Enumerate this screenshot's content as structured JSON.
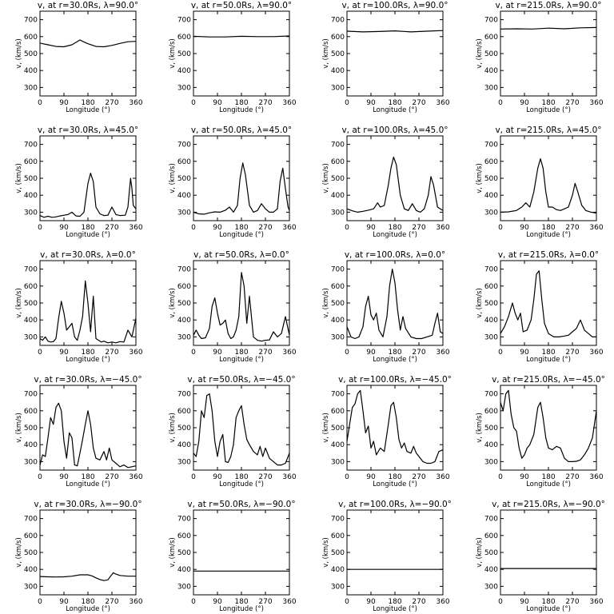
{
  "chart_data": [
    {
      "type": "line",
      "title": "v, at r=30.0Rs, λ=90.0°",
      "xlabel": "Longitude (°)",
      "ylabel": "v, (km/s)",
      "xlim": [
        0,
        360
      ],
      "ylim": [
        250,
        750
      ],
      "x": [
        0,
        30,
        60,
        90,
        120,
        150,
        160,
        180,
        210,
        240,
        270,
        300,
        330,
        360
      ],
      "values": [
        562,
        552,
        542,
        540,
        552,
        580,
        572,
        558,
        542,
        540,
        548,
        560,
        570,
        572
      ]
    },
    {
      "type": "line",
      "title": "v, at r=50.0Rs, λ=90.0°",
      "xlabel": "Longitude (°)",
      "ylabel": "v, (km/s)",
      "xlim": [
        0,
        360
      ],
      "ylim": [
        250,
        750
      ],
      "x": [
        0,
        60,
        120,
        180,
        240,
        300,
        360
      ],
      "values": [
        602,
        598,
        598,
        602,
        600,
        600,
        604
      ]
    },
    {
      "type": "line",
      "title": "v, at r=100.0Rs, λ=90.0°",
      "xlabel": "Longitude (°)",
      "ylabel": "v, (km/s)",
      "xlim": [
        0,
        360
      ],
      "ylim": [
        250,
        750
      ],
      "x": [
        0,
        60,
        120,
        180,
        240,
        300,
        360
      ],
      "values": [
        632,
        628,
        630,
        634,
        628,
        632,
        636
      ]
    },
    {
      "type": "line",
      "title": "v, at r=215.0Rs, λ=90.0°",
      "xlabel": "Longitude (°)",
      "ylabel": "v, (km/s)",
      "xlim": [
        0,
        360
      ],
      "ylim": [
        250,
        750
      ],
      "x": [
        0,
        60,
        120,
        180,
        240,
        300,
        360
      ],
      "values": [
        645,
        646,
        645,
        650,
        646,
        652,
        654
      ]
    },
    {
      "type": "line",
      "title": "v, at r=30.0Rs, λ=45.0°",
      "xlabel": "Longitude (°)",
      "ylabel": "v, (km/s)",
      "xlim": [
        0,
        360
      ],
      "ylim": [
        250,
        750
      ],
      "x": [
        0,
        15,
        30,
        45,
        60,
        75,
        90,
        105,
        120,
        135,
        150,
        165,
        180,
        190,
        200,
        210,
        225,
        240,
        255,
        270,
        285,
        300,
        320,
        330,
        340,
        345,
        350,
        360
      ],
      "values": [
        280,
        270,
        276,
        270,
        272,
        278,
        282,
        286,
        300,
        278,
        276,
        300,
        470,
        530,
        480,
        330,
        290,
        280,
        282,
        330,
        286,
        280,
        282,
        330,
        500,
        440,
        340,
        320
      ]
    },
    {
      "type": "line",
      "title": "v, at r=50.0Rs, λ=45.0°",
      "xlabel": "Longitude (°)",
      "ylabel": "v, (km/s)",
      "xlim": [
        0,
        360
      ],
      "ylim": [
        250,
        750
      ],
      "x": [
        0,
        20,
        40,
        60,
        80,
        100,
        120,
        135,
        150,
        165,
        175,
        185,
        195,
        210,
        225,
        240,
        255,
        270,
        285,
        300,
        315,
        325,
        335,
        345,
        355,
        360
      ],
      "values": [
        300,
        290,
        288,
        296,
        302,
        300,
        312,
        330,
        300,
        340,
        500,
        590,
        520,
        340,
        300,
        310,
        350,
        320,
        300,
        300,
        320,
        480,
        560,
        440,
        330,
        310
      ]
    },
    {
      "type": "line",
      "title": "v, at r=100.0Rs, λ=45.0°",
      "xlabel": "Longitude (°)",
      "ylabel": "v, (km/s)",
      "xlim": [
        0,
        360
      ],
      "ylim": [
        250,
        750
      ],
      "x": [
        0,
        20,
        40,
        60,
        80,
        100,
        115,
        125,
        140,
        155,
        165,
        175,
        185,
        200,
        215,
        230,
        245,
        260,
        275,
        290,
        305,
        315,
        325,
        340,
        350,
        360
      ],
      "values": [
        320,
        308,
        300,
        305,
        312,
        320,
        355,
        330,
        340,
        460,
        560,
        625,
        580,
        400,
        320,
        310,
        350,
        310,
        300,
        320,
        400,
        510,
        460,
        330,
        320,
        310
      ]
    },
    {
      "type": "line",
      "title": "v, at r=215.0Rs, λ=45.0°",
      "xlabel": "Longitude (°)",
      "ylabel": "v, (km/s)",
      "xlim": [
        0,
        360
      ],
      "ylim": [
        250,
        750
      ],
      "x": [
        0,
        30,
        60,
        80,
        95,
        110,
        125,
        140,
        150,
        160,
        170,
        180,
        195,
        210,
        225,
        240,
        255,
        270,
        280,
        290,
        305,
        320,
        340,
        360
      ],
      "values": [
        300,
        302,
        310,
        330,
        355,
        330,
        420,
        560,
        615,
        560,
        420,
        330,
        330,
        315,
        310,
        320,
        330,
        400,
        470,
        420,
        340,
        310,
        300,
        295
      ]
    },
    {
      "type": "line",
      "title": "v, at r=30.0Rs, λ=0.0°",
      "xlabel": "Longitude (°)",
      "ylabel": "v, (km/s)",
      "xlim": [
        0,
        360
      ],
      "ylim": [
        250,
        750
      ],
      "x": [
        0,
        10,
        20,
        30,
        40,
        50,
        60,
        70,
        80,
        90,
        100,
        110,
        120,
        130,
        140,
        150,
        160,
        170,
        180,
        190,
        200,
        210,
        220,
        230,
        240,
        255,
        270,
        285,
        300,
        315,
        330,
        345,
        360
      ],
      "values": [
        290,
        280,
        300,
        275,
        270,
        272,
        290,
        410,
        510,
        440,
        340,
        360,
        380,
        300,
        280,
        340,
        420,
        630,
        500,
        330,
        540,
        290,
        280,
        270,
        275,
        265,
        270,
        265,
        272,
        270,
        340,
        300,
        410
      ]
    },
    {
      "type": "line",
      "title": "v, at r=50.0Rs, λ=0.0°",
      "xlabel": "Longitude (°)",
      "ylabel": "v, (km/s)",
      "xlim": [
        0,
        360
      ],
      "ylim": [
        250,
        750
      ],
      "x": [
        0,
        10,
        20,
        30,
        45,
        60,
        70,
        80,
        90,
        100,
        110,
        120,
        130,
        140,
        150,
        160,
        170,
        180,
        190,
        200,
        210,
        225,
        240,
        255,
        270,
        285,
        300,
        315,
        330,
        345,
        360
      ],
      "values": [
        310,
        340,
        310,
        290,
        295,
        350,
        480,
        530,
        440,
        370,
        380,
        400,
        320,
        290,
        300,
        340,
        420,
        680,
        600,
        380,
        540,
        300,
        280,
        275,
        280,
        282,
        330,
        300,
        320,
        420,
        310
      ]
    },
    {
      "type": "line",
      "title": "v, at r=100.0Rs, λ=0.0°",
      "xlabel": "Longitude (°)",
      "ylabel": "v, (km/s)",
      "xlim": [
        0,
        360
      ],
      "ylim": [
        250,
        750
      ],
      "x": [
        0,
        15,
        30,
        45,
        60,
        70,
        80,
        90,
        100,
        110,
        120,
        135,
        150,
        160,
        170,
        180,
        190,
        200,
        210,
        220,
        240,
        260,
        280,
        300,
        320,
        330,
        340,
        350,
        360
      ],
      "values": [
        360,
        300,
        290,
        300,
        360,
        480,
        540,
        430,
        400,
        440,
        340,
        300,
        420,
        600,
        700,
        620,
        460,
        340,
        420,
        350,
        300,
        290,
        290,
        300,
        310,
        380,
        440,
        330,
        320
      ]
    },
    {
      "type": "line",
      "title": "v, at r=215.0Rs, λ=0.0°",
      "xlabel": "Longitude (°)",
      "ylabel": "v, (km/s)",
      "xlim": [
        0,
        360
      ],
      "ylim": [
        250,
        750
      ],
      "x": [
        0,
        15,
        30,
        45,
        55,
        65,
        75,
        85,
        100,
        115,
        125,
        135,
        145,
        155,
        165,
        180,
        200,
        220,
        240,
        255,
        270,
        285,
        300,
        315,
        330,
        345,
        360
      ],
      "values": [
        320,
        360,
        420,
        500,
        440,
        400,
        440,
        330,
        340,
        400,
        520,
        670,
        690,
        520,
        380,
        320,
        300,
        300,
        305,
        310,
        330,
        350,
        400,
        340,
        320,
        300,
        300
      ]
    },
    {
      "type": "line",
      "title": "v, at r=30.0Rs, λ=−45.0°",
      "xlabel": "Longitude (°)",
      "ylabel": "v, (km/s)",
      "xlim": [
        0,
        360
      ],
      "ylim": [
        250,
        750
      ],
      "x": [
        0,
        10,
        20,
        30,
        40,
        50,
        60,
        70,
        80,
        90,
        100,
        110,
        120,
        130,
        140,
        150,
        160,
        170,
        180,
        190,
        200,
        210,
        225,
        240,
        250,
        260,
        270,
        285,
        300,
        315,
        330,
        345,
        360
      ],
      "values": [
        280,
        340,
        330,
        440,
        560,
        520,
        620,
        645,
        600,
        420,
        320,
        470,
        440,
        280,
        275,
        350,
        430,
        520,
        600,
        520,
        380,
        320,
        310,
        360,
        310,
        380,
        310,
        290,
        270,
        280,
        265,
        270,
        275
      ]
    },
    {
      "type": "line",
      "title": "v, at r=50.0Rs, λ=−45.0°",
      "xlabel": "Longitude (°)",
      "ylabel": "v, (km/s)",
      "xlim": [
        0,
        360
      ],
      "ylim": [
        250,
        750
      ],
      "x": [
        0,
        10,
        20,
        30,
        40,
        50,
        60,
        70,
        80,
        90,
        100,
        110,
        120,
        130,
        140,
        150,
        160,
        170,
        180,
        190,
        200,
        210,
        225,
        240,
        250,
        260,
        270,
        285,
        300,
        315,
        330,
        345,
        360
      ],
      "values": [
        350,
        330,
        420,
        600,
        560,
        690,
        700,
        600,
        420,
        330,
        420,
        460,
        300,
        295,
        330,
        400,
        560,
        600,
        630,
        520,
        430,
        400,
        360,
        340,
        390,
        330,
        380,
        320,
        300,
        280,
        280,
        290,
        350
      ]
    },
    {
      "type": "line",
      "title": "v, at r=100.0Rs, λ=−45.0°",
      "xlabel": "Longitude (°)",
      "ylabel": "v, (km/s)",
      "xlim": [
        0,
        360
      ],
      "ylim": [
        250,
        750
      ],
      "x": [
        0,
        10,
        20,
        30,
        40,
        50,
        60,
        70,
        80,
        90,
        100,
        110,
        125,
        140,
        155,
        165,
        175,
        185,
        195,
        205,
        215,
        225,
        240,
        250,
        260,
        270,
        285,
        300,
        315,
        330,
        345,
        360
      ],
      "values": [
        420,
        520,
        620,
        640,
        700,
        720,
        600,
        470,
        510,
        380,
        420,
        340,
        380,
        360,
        520,
        630,
        650,
        560,
        430,
        380,
        410,
        360,
        350,
        390,
        350,
        330,
        300,
        290,
        290,
        300,
        360,
        370
      ]
    },
    {
      "type": "line",
      "title": "v, at r=215.0Rs, λ=−45.0°",
      "xlabel": "Longitude (°)",
      "ylabel": "v, (km/s)",
      "xlim": [
        0,
        360
      ],
      "ylim": [
        250,
        750
      ],
      "x": [
        0,
        10,
        20,
        30,
        40,
        50,
        60,
        70,
        80,
        90,
        100,
        110,
        125,
        140,
        150,
        160,
        170,
        180,
        195,
        210,
        225,
        240,
        255,
        270,
        285,
        300,
        315,
        330,
        345,
        360
      ],
      "values": [
        650,
        600,
        700,
        720,
        580,
        500,
        480,
        380,
        320,
        340,
        380,
        400,
        460,
        620,
        650,
        560,
        440,
        380,
        370,
        390,
        380,
        320,
        300,
        300,
        302,
        310,
        340,
        380,
        440,
        600
      ]
    },
    {
      "type": "line",
      "title": "v, at r=30.0Rs, λ=−90.0°",
      "xlabel": "Longitude (°)",
      "ylabel": "v, (km/s)",
      "xlim": [
        0,
        360
      ],
      "ylim": [
        250,
        750
      ],
      "x": [
        0,
        30,
        60,
        90,
        120,
        150,
        180,
        195,
        210,
        225,
        240,
        255,
        265,
        275,
        285,
        300,
        330,
        360
      ],
      "values": [
        358,
        356,
        355,
        356,
        360,
        368,
        368,
        362,
        350,
        340,
        334,
        338,
        360,
        380,
        372,
        364,
        360,
        360
      ]
    },
    {
      "type": "line",
      "title": "v, at r=50.0Rs, λ=−90.0°",
      "xlabel": "Longitude (°)",
      "ylabel": "v, (km/s)",
      "xlim": [
        0,
        360
      ],
      "ylim": [
        250,
        750
      ],
      "x": [
        0,
        360
      ],
      "values": [
        390,
        390
      ]
    },
    {
      "type": "line",
      "title": "v, at r=100.0Rs, λ=−90.0°",
      "xlabel": "Longitude (°)",
      "ylabel": "v, (km/s)",
      "xlim": [
        0,
        360
      ],
      "ylim": [
        250,
        750
      ],
      "x": [
        0,
        360
      ],
      "values": [
        400,
        400
      ]
    },
    {
      "type": "line",
      "title": "v, at r=215.0Rs, λ=−90.0°",
      "xlabel": "Longitude (°)",
      "ylabel": "v, (km/s)",
      "xlim": [
        0,
        360
      ],
      "ylim": [
        250,
        750
      ],
      "x": [
        0,
        360
      ],
      "values": [
        405,
        405
      ]
    }
  ],
  "x_ticks": [
    0,
    90,
    180,
    270,
    360
  ],
  "y_ticks": [
    300,
    400,
    500,
    600,
    700
  ]
}
